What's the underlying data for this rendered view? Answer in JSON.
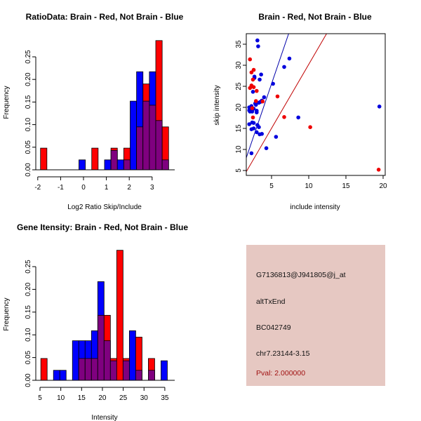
{
  "chart_data": [
    {
      "id": "ratio-hist",
      "type": "bar",
      "subtype": "overlaid-histogram",
      "title": "RatioData: Brain - Red, Not Brain - Blue",
      "xlabel": "Log2 Ratio Skip/Include",
      "ylabel": "Frequency",
      "xlim": [
        -2,
        3.9
      ],
      "ylim": [
        0,
        0.29
      ],
      "xticks": [
        -2,
        -1,
        0,
        1,
        2,
        3
      ],
      "yticks": [
        0.0,
        0.05,
        0.1,
        0.15,
        0.2,
        0.25
      ],
      "ytick_labels": [
        "0.00",
        "0.05",
        "0.10",
        "0.15",
        "0.20",
        "0.25"
      ],
      "bin_start": -1.88,
      "bin_width": 0.28,
      "bins": [
        {
          "bin": 0,
          "red": 0.048,
          "blue": 0
        },
        {
          "bin": 6,
          "red": 0,
          "blue": 0.022
        },
        {
          "bin": 8,
          "red": 0.048,
          "blue": 0
        },
        {
          "bin": 10,
          "red": 0,
          "blue": 0.022
        },
        {
          "bin": 11,
          "red": 0.048,
          "blue": 0.043
        },
        {
          "bin": 12,
          "red": 0,
          "blue": 0.022
        },
        {
          "bin": 13,
          "red": 0.048,
          "blue": 0.022
        },
        {
          "bin": 14,
          "red": 0,
          "blue": 0.152
        },
        {
          "bin": 15,
          "red": 0.095,
          "blue": 0.217
        },
        {
          "bin": 16,
          "red": 0.19,
          "blue": 0.152
        },
        {
          "bin": 17,
          "red": 0.143,
          "blue": 0.217
        },
        {
          "bin": 18,
          "red": 0.286,
          "blue": 0.109
        },
        {
          "bin": 19,
          "red": 0.095,
          "blue": 0.022
        }
      ],
      "series": [
        {
          "name": "Brain",
          "color": "#ff0000"
        },
        {
          "name": "Not Brain",
          "color": "#0000ff"
        },
        {
          "name": "Overlap",
          "color": "#7f007f"
        }
      ]
    },
    {
      "id": "intensity-scatter",
      "type": "scatter",
      "title": "Brain - Red, Not Brain - Blue",
      "xlabel": "include intensity",
      "ylabel": "skip intensity",
      "xlim": [
        1.6,
        20.2
      ],
      "ylim": [
        4.0,
        37.5
      ],
      "xticks": [
        5,
        10,
        15,
        20
      ],
      "yticks": [
        5,
        10,
        15,
        20,
        25,
        30,
        35
      ],
      "series": [
        {
          "name": "Not Brain",
          "color": "#0000dd",
          "points": [
            [
              3.1,
              35.9
            ],
            [
              3.2,
              34.5
            ],
            [
              7.4,
              31.6
            ],
            [
              6.7,
              29.6
            ],
            [
              2.7,
              27.3
            ],
            [
              2.7,
              27.0
            ],
            [
              3.6,
              27.8
            ],
            [
              3.4,
              26.6
            ],
            [
              2.5,
              23.7
            ],
            [
              5.2,
              25.6
            ],
            [
              4.0,
              22.4
            ],
            [
              3.7,
              21.6
            ],
            [
              3.3,
              21.1
            ],
            [
              2.9,
              20.6
            ],
            [
              2.3,
              20.3
            ],
            [
              2.0,
              20.0
            ],
            [
              2.4,
              19.5
            ],
            [
              3.0,
              19.2
            ],
            [
              2.1,
              19.0
            ],
            [
              2.4,
              19.0
            ],
            [
              3.0,
              18.8
            ],
            [
              2.0,
              19.3
            ],
            [
              8.6,
              17.6
            ],
            [
              2.4,
              16.4
            ],
            [
              2.0,
              16.0
            ],
            [
              2.6,
              16.3
            ],
            [
              3.1,
              15.8
            ],
            [
              3.3,
              15.3
            ],
            [
              2.6,
              15.0
            ],
            [
              2.3,
              14.8
            ],
            [
              3.0,
              14.1
            ],
            [
              3.4,
              13.6
            ],
            [
              3.7,
              13.7
            ],
            [
              5.6,
              13.0
            ],
            [
              4.3,
              10.3
            ],
            [
              2.3,
              9.1
            ],
            [
              19.5,
              20.2
            ],
            [
              2.8,
              20.9
            ],
            [
              3.5,
              21.3
            ],
            [
              2.6,
              19.7
            ]
          ],
          "fit_line": {
            "x": [
              1.6,
              7.3
            ],
            "y": [
              8.0,
              37.5
            ]
          }
        },
        {
          "name": "Brain",
          "color": "#ee0000",
          "points": [
            [
              2.1,
              31.4
            ],
            [
              2.6,
              28.9
            ],
            [
              2.3,
              28.3
            ],
            [
              2.5,
              26.6
            ],
            [
              2.3,
              25.2
            ],
            [
              2.1,
              24.6
            ],
            [
              2.6,
              24.8
            ],
            [
              3.0,
              23.9
            ],
            [
              5.8,
              22.6
            ],
            [
              2.9,
              21.5
            ],
            [
              3.8,
              21.4
            ],
            [
              2.4,
              19.8
            ],
            [
              2.5,
              17.6
            ],
            [
              6.7,
              17.7
            ],
            [
              10.2,
              15.3
            ],
            [
              19.4,
              5.2
            ]
          ],
          "fit_line": {
            "x": [
              1.6,
              12.4
            ],
            "y": [
              4.7,
              37.5
            ]
          }
        }
      ]
    },
    {
      "id": "gene-intensity-hist",
      "type": "bar",
      "subtype": "overlaid-histogram",
      "title": "Gene Itensity: Brain - Red, Not Brain - Blue",
      "xlabel": "Intensity",
      "ylabel": "Frequency",
      "xlim": [
        5,
        37
      ],
      "ylim": [
        0,
        0.29
      ],
      "xticks": [
        5,
        10,
        15,
        20,
        25,
        30,
        35
      ],
      "yticks": [
        0.0,
        0.05,
        0.1,
        0.15,
        0.2,
        0.25
      ],
      "ytick_labels": [
        "0.00",
        "0.05",
        "0.10",
        "0.15",
        "0.20",
        "0.25"
      ],
      "bin_start": 5.2,
      "bin_width": 1.52,
      "bins": [
        {
          "bin": 0,
          "red": 0.048,
          "blue": 0
        },
        {
          "bin": 2,
          "red": 0,
          "blue": 0.022
        },
        {
          "bin": 3,
          "red": 0,
          "blue": 0.022
        },
        {
          "bin": 5,
          "red": 0,
          "blue": 0.087
        },
        {
          "bin": 6,
          "red": 0.048,
          "blue": 0.087
        },
        {
          "bin": 7,
          "red": 0.048,
          "blue": 0.087
        },
        {
          "bin": 8,
          "red": 0.048,
          "blue": 0.109
        },
        {
          "bin": 9,
          "red": 0.143,
          "blue": 0.217
        },
        {
          "bin": 10,
          "red": 0.143,
          "blue": 0.087
        },
        {
          "bin": 11,
          "red": 0.048,
          "blue": 0.043
        },
        {
          "bin": 12,
          "red": 0.286,
          "blue": 0
        },
        {
          "bin": 13,
          "red": 0.048,
          "blue": 0.043
        },
        {
          "bin": 14,
          "red": 0,
          "blue": 0.109
        },
        {
          "bin": 15,
          "red": 0.095,
          "blue": 0.022
        },
        {
          "bin": 17,
          "red": 0.048,
          "blue": 0.022
        },
        {
          "bin": 19,
          "red": 0,
          "blue": 0.043
        }
      ],
      "series": [
        {
          "name": "Brain",
          "color": "#ff0000"
        },
        {
          "name": "Not Brain",
          "color": "#0000ff"
        },
        {
          "name": "Overlap",
          "color": "#7f007f"
        }
      ]
    }
  ],
  "info_panel": {
    "background": "#e6c8c2",
    "probe_id": "G7136813@J941805@j_at",
    "event_type": "altTxEnd",
    "accession": "BC042749",
    "location": "chr7.23144-3.15",
    "pval": "Pval: 2.000000",
    "pval_color": "#a01010"
  }
}
